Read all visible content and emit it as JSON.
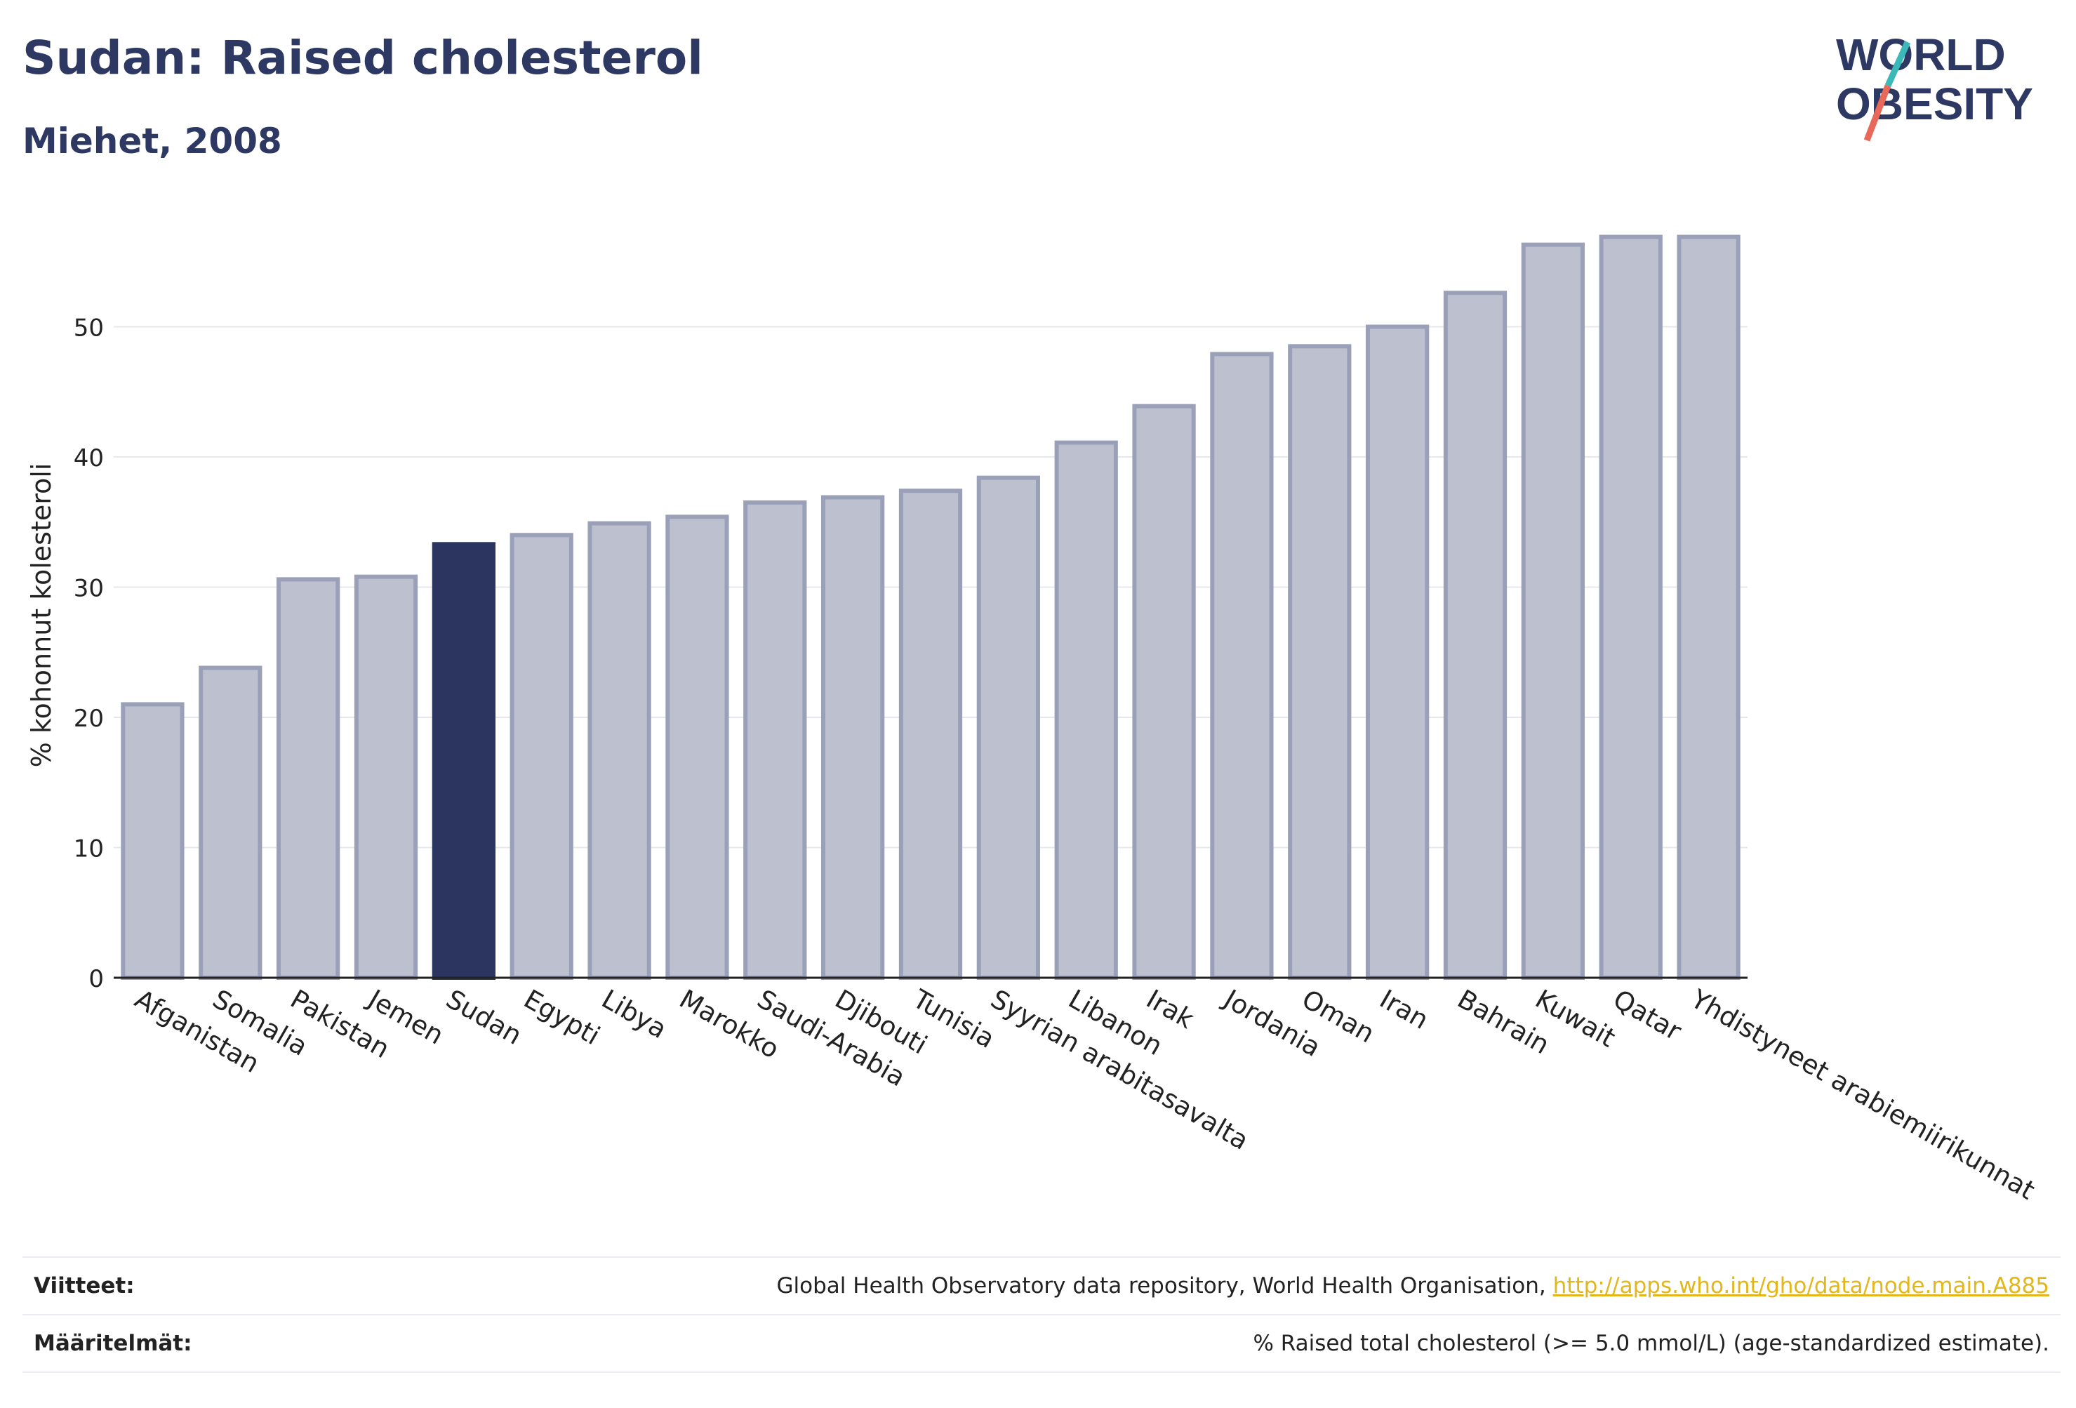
{
  "header": {
    "title": "Sudan: Raised cholesterol",
    "subtitle": "Miehet, 2008"
  },
  "logo": {
    "line1": "WORLD",
    "line2": "OBESITY",
    "accent_teal": "#3bb8b8",
    "accent_red": "#e8685a",
    "color": "#2d3863"
  },
  "chart_data": {
    "type": "bar",
    "ylabel": "% kohonnut kolesteroli",
    "xlabel": "",
    "ylim": [
      0,
      60
    ],
    "yticks": [
      0,
      10,
      20,
      30,
      40,
      50
    ],
    "grid": true,
    "highlight_category": "Sudan",
    "colors": {
      "bar": "#bdc0cf",
      "bar_edge": "#9aa0b8",
      "highlight": "#2b3560"
    },
    "categories": [
      "Afganistan",
      "Somalia",
      "Pakistan",
      "Jemen",
      "Sudan",
      "Egypti",
      "Libya",
      "Marokko",
      "Saudi-Arabia",
      "Djibouti",
      "Tunisia",
      "Syyrian arabitasavalta",
      "Libanon",
      "Irak",
      "Jordania",
      "Oman",
      "Iran",
      "Bahrain",
      "Kuwait",
      "Qatar",
      "Yhdistyneet arabiemiirikunnat"
    ],
    "values": [
      21.0,
      23.8,
      30.6,
      30.8,
      33.3,
      34.0,
      34.9,
      35.4,
      36.5,
      36.9,
      37.4,
      38.4,
      41.1,
      43.9,
      47.9,
      48.5,
      50.0,
      52.6,
      56.3,
      56.9,
      56.9
    ]
  },
  "footer": {
    "references_label": "Viitteet:",
    "references_text": "Global Health Observatory data repository, World Health Organisation, ",
    "references_link": "http://apps.who.int/gho/data/node.main.A885",
    "definitions_label": "Määritelmät:",
    "definitions_text": "% Raised total cholesterol (>= 5.0 mmol/L) (age-standardized estimate)."
  }
}
